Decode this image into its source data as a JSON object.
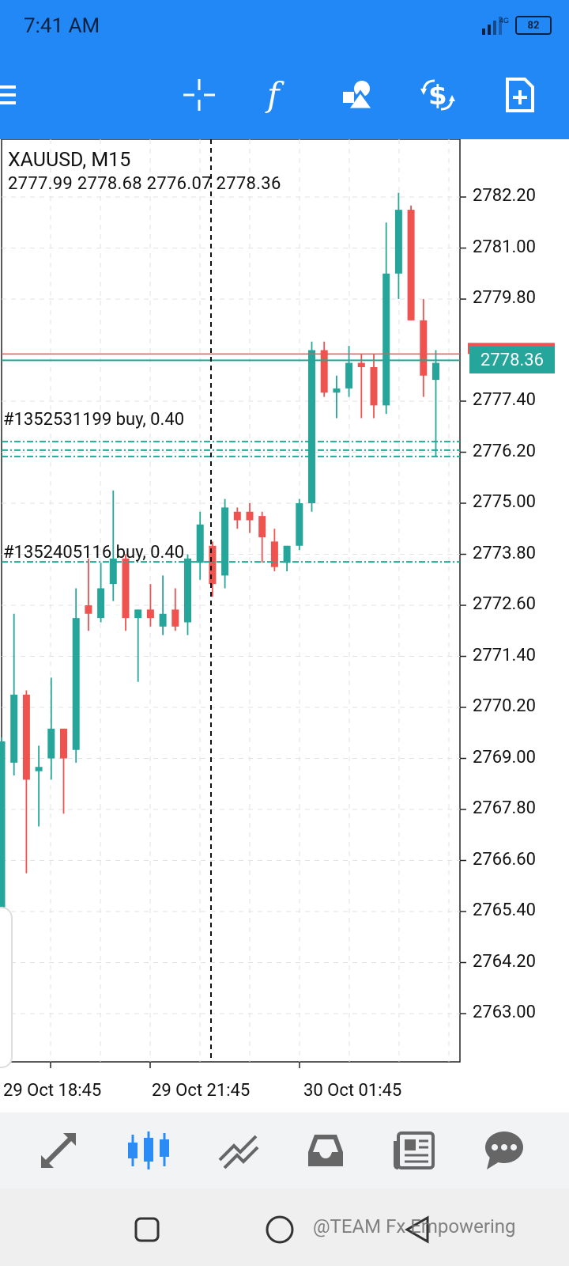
{
  "status_bar": {
    "time": "7:41 AM",
    "network": "4G",
    "battery": "82"
  },
  "toolbar": {
    "buttons": [
      {
        "name": "crosshair-button",
        "icon": "crosshair-icon"
      },
      {
        "name": "indicators-button",
        "icon": "function-icon"
      },
      {
        "name": "objects-button",
        "icon": "shapes-icon"
      },
      {
        "name": "trade-button",
        "icon": "dollar-trade-icon"
      },
      {
        "name": "new-order-button",
        "icon": "new-document-icon"
      }
    ]
  },
  "chart": {
    "symbol_title": "XAUUSD, M15",
    "ohlc": "2777.99 2778.68 2776.07 2778.36",
    "bid_label": "2778.36",
    "order1_label": "#1352531199 buy, 0.40",
    "order2_label": "#1352405116 buy, 0.40",
    "y_ticks": [
      "2782.20",
      "2781.00",
      "2779.80",
      "2777.40",
      "2776.20",
      "2775.00",
      "2773.80",
      "2772.60",
      "2771.40",
      "2770.20",
      "2769.00",
      "2767.80",
      "2766.60",
      "2765.40",
      "2764.20",
      "2763.00"
    ],
    "x_ticks": [
      "29 Oct 18:45",
      "29 Oct 21:45",
      "30 Oct 01:45"
    ],
    "colors": {
      "bull": "#26a69a",
      "bear": "#ef5350",
      "grid": "#e2e2e2",
      "ask_line": "#ef5350"
    }
  },
  "chart_data": {
    "type": "candlestick",
    "title": "XAUUSD, M15",
    "ylim": [
      2762.0,
      2783.2
    ],
    "price_bid": 2778.36,
    "price_ask": 2778.51,
    "order_levels": [
      2776.45,
      2776.25,
      2776.1,
      2773.62
    ],
    "candles": [
      {
        "o": 2765.5,
        "h": 2769.5,
        "l": 2765.0,
        "c": 2769.4
      },
      {
        "o": 2768.9,
        "h": 2772.4,
        "l": 2768.6,
        "c": 2770.5
      },
      {
        "o": 2770.5,
        "h": 2770.6,
        "l": 2766.3,
        "c": 2768.5
      },
      {
        "o": 2768.7,
        "h": 2769.3,
        "l": 2767.4,
        "c": 2768.8
      },
      {
        "o": 2769.0,
        "h": 2770.9,
        "l": 2768.5,
        "c": 2769.7
      },
      {
        "o": 2769.7,
        "h": 2769.7,
        "l": 2767.7,
        "c": 2769.0
      },
      {
        "o": 2769.2,
        "h": 2773.0,
        "l": 2768.9,
        "c": 2772.3
      },
      {
        "o": 2772.6,
        "h": 2773.7,
        "l": 2772.0,
        "c": 2772.4
      },
      {
        "o": 2772.3,
        "h": 2773.6,
        "l": 2772.2,
        "c": 2773.0
      },
      {
        "o": 2773.1,
        "h": 2775.3,
        "l": 2772.7,
        "c": 2773.7
      },
      {
        "o": 2773.7,
        "h": 2773.8,
        "l": 2772.0,
        "c": 2772.3
      },
      {
        "o": 2772.3,
        "h": 2772.5,
        "l": 2770.8,
        "c": 2772.5
      },
      {
        "o": 2772.5,
        "h": 2773.1,
        "l": 2772.1,
        "c": 2772.3
      },
      {
        "o": 2772.1,
        "h": 2773.3,
        "l": 2771.9,
        "c": 2772.4
      },
      {
        "o": 2772.5,
        "h": 2773.0,
        "l": 2772.0,
        "c": 2772.1
      },
      {
        "o": 2772.2,
        "h": 2773.8,
        "l": 2771.9,
        "c": 2773.7
      },
      {
        "o": 2773.6,
        "h": 2774.8,
        "l": 2773.2,
        "c": 2774.5
      },
      {
        "o": 2774.0,
        "h": 2774.1,
        "l": 2772.8,
        "c": 2773.1
      },
      {
        "o": 2773.3,
        "h": 2775.1,
        "l": 2773.0,
        "c": 2774.9
      },
      {
        "o": 2774.8,
        "h": 2774.9,
        "l": 2774.4,
        "c": 2774.6
      },
      {
        "o": 2774.8,
        "h": 2775.0,
        "l": 2774.3,
        "c": 2774.6
      },
      {
        "o": 2774.7,
        "h": 2774.8,
        "l": 2773.6,
        "c": 2774.2
      },
      {
        "o": 2774.1,
        "h": 2774.4,
        "l": 2773.4,
        "c": 2773.5
      },
      {
        "o": 2773.6,
        "h": 2774.0,
        "l": 2773.4,
        "c": 2774.0
      },
      {
        "o": 2774.0,
        "h": 2775.1,
        "l": 2773.9,
        "c": 2775.0
      },
      {
        "o": 2775.0,
        "h": 2778.8,
        "l": 2774.8,
        "c": 2778.6
      },
      {
        "o": 2778.6,
        "h": 2778.8,
        "l": 2777.5,
        "c": 2777.6
      },
      {
        "o": 2777.6,
        "h": 2778.0,
        "l": 2777.0,
        "c": 2777.7
      },
      {
        "o": 2777.7,
        "h": 2778.7,
        "l": 2777.5,
        "c": 2778.3
      },
      {
        "o": 2778.3,
        "h": 2778.5,
        "l": 2777.0,
        "c": 2778.2
      },
      {
        "o": 2778.2,
        "h": 2778.5,
        "l": 2777.0,
        "c": 2777.3
      },
      {
        "o": 2777.3,
        "h": 2781.6,
        "l": 2777.1,
        "c": 2780.4
      },
      {
        "o": 2780.4,
        "h": 2782.3,
        "l": 2779.8,
        "c": 2781.9
      },
      {
        "o": 2781.9,
        "h": 2782.0,
        "l": 2779.3,
        "c": 2779.3
      },
      {
        "o": 2779.3,
        "h": 2779.8,
        "l": 2777.5,
        "c": 2778.0
      },
      {
        "o": 2777.9,
        "h": 2778.6,
        "l": 2776.1,
        "c": 2778.3
      }
    ]
  },
  "bottom_nav": {
    "buttons": [
      {
        "name": "quotes-tab",
        "icon": "quotes-arrows-icon"
      },
      {
        "name": "chart-tab",
        "icon": "candlestick-icon",
        "active": true
      },
      {
        "name": "trade-tab",
        "icon": "trend-lines-icon"
      },
      {
        "name": "history-tab",
        "icon": "inbox-icon"
      },
      {
        "name": "news-tab",
        "icon": "newspaper-icon"
      },
      {
        "name": "messages-tab",
        "icon": "chat-bubble-icon"
      }
    ]
  },
  "system_nav": {
    "watermark": "@TEAM Fx Empowering"
  }
}
